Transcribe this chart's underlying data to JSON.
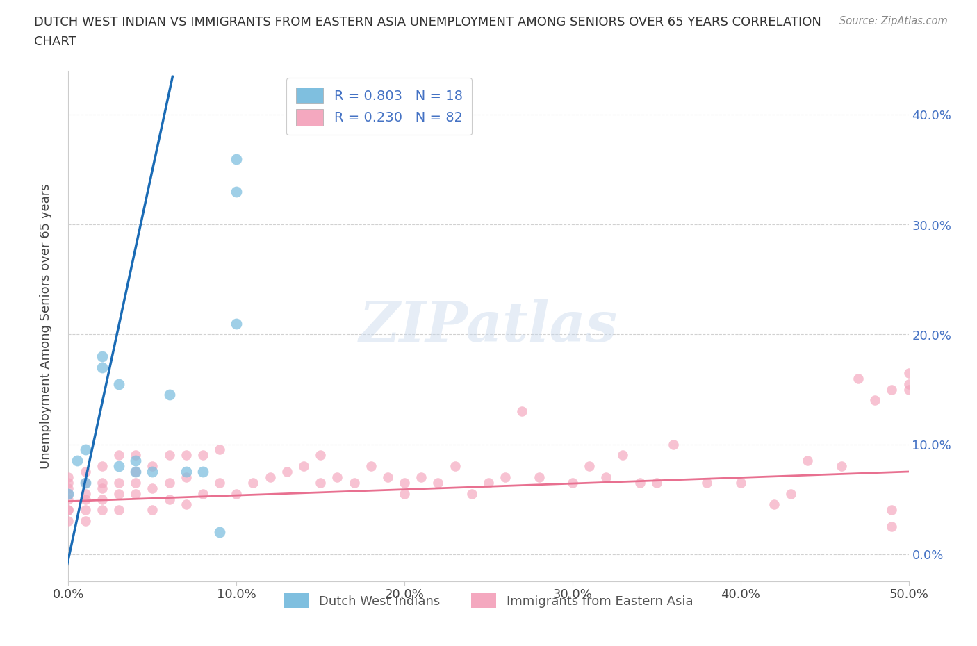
{
  "title_line1": "DUTCH WEST INDIAN VS IMMIGRANTS FROM EASTERN ASIA UNEMPLOYMENT AMONG SENIORS OVER 65 YEARS CORRELATION",
  "title_line2": "CHART",
  "source": "Source: ZipAtlas.com",
  "ylabel": "Unemployment Among Seniors over 65 years",
  "xlim": [
    0.0,
    0.5
  ],
  "ylim": [
    -0.025,
    0.44
  ],
  "xticks": [
    0.0,
    0.1,
    0.2,
    0.3,
    0.4,
    0.5
  ],
  "yticks": [
    0.0,
    0.1,
    0.2,
    0.3,
    0.4
  ],
  "ytick_labels_right": [
    "0.0%",
    "10.0%",
    "20.0%",
    "30.0%",
    "40.0%"
  ],
  "xtick_labels": [
    "0.0%",
    "10.0%",
    "20.0%",
    "30.0%",
    "40.0%",
    "50.0%"
  ],
  "watermark": "ZIPatlas",
  "legend_r1": "R = 0.803   N = 18",
  "legend_r2": "R = 0.230   N = 82",
  "legend_label1": "Dutch West Indians",
  "legend_label2": "Immigrants from Eastern Asia",
  "color_blue": "#7fbfdf",
  "color_pink": "#f4a8bf",
  "color_blue_line": "#1a6bb5",
  "color_pink_line": "#e87090",
  "blue_x": [
    0.0,
    0.005,
    0.01,
    0.01,
    0.02,
    0.02,
    0.03,
    0.03,
    0.04,
    0.04,
    0.05,
    0.06,
    0.07,
    0.08,
    0.09,
    0.1,
    0.1,
    0.1
  ],
  "blue_y": [
    0.055,
    0.085,
    0.065,
    0.095,
    0.17,
    0.18,
    0.155,
    0.08,
    0.075,
    0.085,
    0.075,
    0.145,
    0.075,
    0.075,
    0.02,
    0.21,
    0.36,
    0.33
  ],
  "blue_line_x": [
    -0.005,
    0.062
  ],
  "blue_line_y": [
    -0.04,
    0.435
  ],
  "pink_x": [
    0.0,
    0.0,
    0.0,
    0.0,
    0.0,
    0.0,
    0.0,
    0.0,
    0.01,
    0.01,
    0.01,
    0.01,
    0.01,
    0.01,
    0.02,
    0.02,
    0.02,
    0.02,
    0.02,
    0.03,
    0.03,
    0.03,
    0.03,
    0.04,
    0.04,
    0.04,
    0.04,
    0.05,
    0.05,
    0.05,
    0.06,
    0.06,
    0.06,
    0.07,
    0.07,
    0.07,
    0.08,
    0.08,
    0.09,
    0.09,
    0.1,
    0.11,
    0.12,
    0.13,
    0.14,
    0.15,
    0.15,
    0.16,
    0.17,
    0.18,
    0.19,
    0.2,
    0.2,
    0.21,
    0.22,
    0.23,
    0.24,
    0.25,
    0.26,
    0.27,
    0.28,
    0.3,
    0.31,
    0.32,
    0.33,
    0.34,
    0.35,
    0.36,
    0.38,
    0.4,
    0.42,
    0.43,
    0.44,
    0.46,
    0.47,
    0.48,
    0.49,
    0.49,
    0.49,
    0.5,
    0.5,
    0.5
  ],
  "pink_y": [
    0.03,
    0.04,
    0.04,
    0.05,
    0.055,
    0.06,
    0.065,
    0.07,
    0.03,
    0.04,
    0.05,
    0.055,
    0.065,
    0.075,
    0.04,
    0.05,
    0.06,
    0.065,
    0.08,
    0.04,
    0.055,
    0.065,
    0.09,
    0.055,
    0.065,
    0.075,
    0.09,
    0.04,
    0.06,
    0.08,
    0.05,
    0.065,
    0.09,
    0.045,
    0.07,
    0.09,
    0.055,
    0.09,
    0.065,
    0.095,
    0.055,
    0.065,
    0.07,
    0.075,
    0.08,
    0.065,
    0.09,
    0.07,
    0.065,
    0.08,
    0.07,
    0.055,
    0.065,
    0.07,
    0.065,
    0.08,
    0.055,
    0.065,
    0.07,
    0.13,
    0.07,
    0.065,
    0.08,
    0.07,
    0.09,
    0.065,
    0.065,
    0.1,
    0.065,
    0.065,
    0.045,
    0.055,
    0.085,
    0.08,
    0.16,
    0.14,
    0.15,
    0.025,
    0.04,
    0.155,
    0.15,
    0.165
  ],
  "pink_line_x": [
    0.0,
    0.5
  ],
  "pink_line_y": [
    0.048,
    0.075
  ],
  "background_color": "#ffffff",
  "grid_color": "#cccccc"
}
